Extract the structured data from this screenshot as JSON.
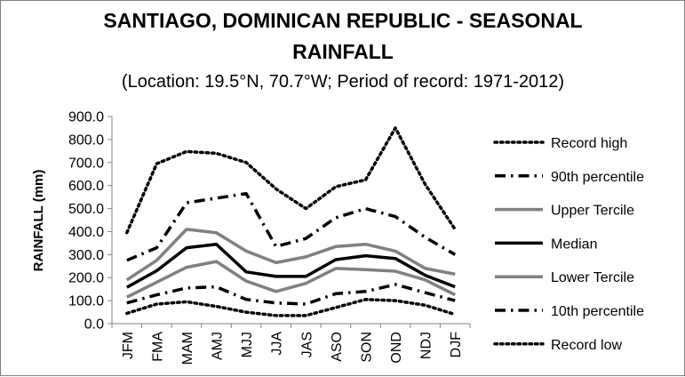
{
  "chart_data": {
    "type": "line",
    "title_line1": "SANTIAGO, DOMINICAN REPUBLIC - SEASONAL",
    "title_line2": "RAINFALL",
    "subtitle": "(Location: 19.5°N, 70.7°W; Period of record: 1971-2012)",
    "ylabel": "RAINFALL (mm)",
    "xlabel": "",
    "ylim": [
      0,
      900
    ],
    "yticks": [
      "0.0",
      "100.0",
      "200.0",
      "300.0",
      "400.0",
      "500.0",
      "600.0",
      "700.0",
      "800.0",
      "900.0"
    ],
    "categories": [
      "JFM",
      "FMA",
      "MAM",
      "AMJ",
      "MJJ",
      "JJA",
      "JAS",
      "ASO",
      "SON",
      "OND",
      "NDJ",
      "DJF"
    ],
    "grid": false,
    "legend_position": "right",
    "series": [
      {
        "name": "Record high",
        "style": "dotted",
        "color": "#000000",
        "values": [
          395,
          695,
          748,
          740,
          700,
          585,
          500,
          595,
          625,
          850,
          605,
          410
        ]
      },
      {
        "name": "90th percentile",
        "style": "dashdot",
        "color": "#000000",
        "values": [
          275,
          330,
          525,
          545,
          565,
          335,
          370,
          460,
          500,
          465,
          375,
          300
        ]
      },
      {
        "name": "Upper Tercile",
        "style": "solid",
        "color": "#808080",
        "values": [
          190,
          275,
          410,
          395,
          315,
          265,
          290,
          335,
          345,
          315,
          240,
          215
        ]
      },
      {
        "name": "Median",
        "style": "solid",
        "color": "#000000",
        "values": [
          158,
          230,
          330,
          345,
          225,
          205,
          205,
          278,
          295,
          283,
          210,
          160
        ]
      },
      {
        "name": "Lower Tercile",
        "style": "solid",
        "color": "#808080",
        "values": [
          115,
          180,
          245,
          270,
          185,
          140,
          175,
          240,
          235,
          228,
          190,
          125
        ]
      },
      {
        "name": "10th percentile",
        "style": "dashdot",
        "color": "#000000",
        "values": [
          90,
          125,
          155,
          160,
          105,
          90,
          85,
          130,
          140,
          170,
          135,
          100
        ]
      },
      {
        "name": "Record low",
        "style": "dotted",
        "color": "#000000",
        "values": [
          45,
          85,
          95,
          75,
          50,
          35,
          35,
          70,
          105,
          100,
          80,
          40
        ]
      }
    ]
  }
}
